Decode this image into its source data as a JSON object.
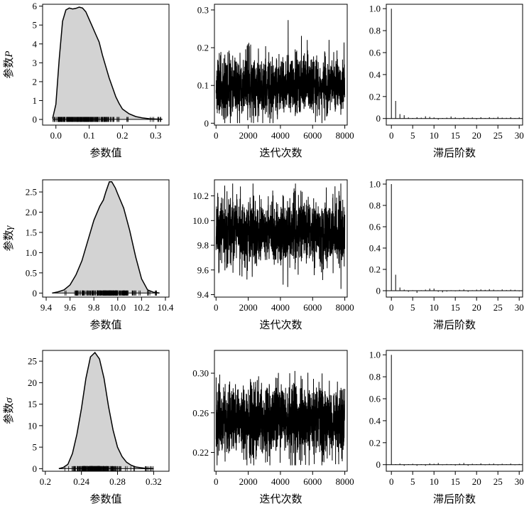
{
  "row_labels": [
    {
      "prefix": "参数",
      "symbol": "P"
    },
    {
      "prefix": "参数",
      "symbol": "γ"
    },
    {
      "prefix": "参数",
      "symbol": "σ"
    }
  ],
  "xlabels": {
    "density": "参数值",
    "trace": "迭代次数",
    "acf": "滞后阶数"
  },
  "colors": {
    "fill": "#d3d3d3",
    "line": "#000000",
    "frame": "#000000"
  },
  "chart_data": [
    {
      "id": "dens_P",
      "type": "area",
      "xlabel": "参数值",
      "xlim": [
        -0.04,
        0.34
      ],
      "ylim": [
        -0.3,
        6.1
      ],
      "xticks": [
        0.0,
        0.1,
        0.2,
        0.3
      ],
      "xtick_labels": [
        "0.0",
        "0.1",
        "0.2",
        "0.3"
      ],
      "yticks": [
        0,
        1,
        2,
        3,
        4,
        5,
        6
      ],
      "ytick_labels": [
        "0",
        "1",
        "2",
        "3",
        "4",
        "5",
        "6"
      ],
      "x": [
        -0.01,
        0.0,
        0.01,
        0.02,
        0.03,
        0.04,
        0.05,
        0.06,
        0.07,
        0.08,
        0.09,
        0.1,
        0.11,
        0.12,
        0.13,
        0.14,
        0.15,
        0.16,
        0.17,
        0.18,
        0.19,
        0.2,
        0.22,
        0.24,
        0.26,
        0.28,
        0.3,
        0.32
      ],
      "y": [
        0.05,
        0.8,
        3.2,
        5.2,
        5.8,
        5.9,
        5.85,
        5.88,
        5.95,
        5.9,
        5.7,
        5.3,
        4.9,
        4.5,
        4.1,
        3.4,
        2.8,
        2.2,
        1.7,
        1.2,
        0.85,
        0.55,
        0.3,
        0.15,
        0.08,
        0.04,
        0.02,
        0.01
      ]
    },
    {
      "id": "trace_P",
      "type": "line",
      "xlabel": "迭代次数",
      "xlim": [
        -100,
        8150
      ],
      "ylim": [
        -0.005,
        0.315
      ],
      "xticks": [
        0,
        2000,
        4000,
        6000,
        8000
      ],
      "xtick_labels": [
        "0",
        "2000",
        "4000",
        "6000",
        "8000"
      ],
      "yticks": [
        0.0,
        0.1,
        0.2,
        0.3
      ],
      "ytick_labels": [
        "0",
        "0.1",
        "0.2",
        "0.3"
      ],
      "n": 8000,
      "center": 0.098,
      "spread": 0.038,
      "lo": 0.0,
      "hi": 0.31,
      "seed": 11
    },
    {
      "id": "acf_P",
      "type": "bar",
      "xlabel": "滞后阶数",
      "xlim": [
        -1.2,
        30.8
      ],
      "ylim": [
        -0.06,
        1.04
      ],
      "xticks": [
        0,
        5,
        10,
        15,
        20,
        25,
        30
      ],
      "xtick_labels": [
        "0",
        "5",
        "10",
        "15",
        "20",
        "25",
        "30"
      ],
      "yticks": [
        0,
        0.2,
        0.4,
        0.6,
        0.8,
        1.0
      ],
      "ytick_labels": [
        "0",
        "0.2",
        "0.4",
        "0.6",
        "0.8",
        "1.0"
      ],
      "lags": [
        0,
        1,
        2,
        3,
        4,
        5,
        6,
        7,
        8,
        9,
        10,
        11,
        12,
        13,
        14,
        15,
        16,
        17,
        18,
        19,
        20,
        21,
        22,
        23,
        24,
        25,
        26,
        27,
        28,
        29,
        30
      ],
      "values": [
        1.0,
        0.16,
        0.04,
        0.03,
        0.01,
        0.005,
        0.012,
        0.008,
        0.02,
        0.015,
        0.01,
        -0.01,
        0.005,
        0.008,
        0.018,
        0.01,
        -0.005,
        0.012,
        0.006,
        0.01,
        -0.008,
        0.012,
        0.004,
        0.012,
        0.006,
        0.015,
        0.008,
        0.006,
        0.012,
        0.004,
        0.01
      ]
    },
    {
      "id": "dens_g",
      "type": "area",
      "xlabel": "参数值",
      "xlim": [
        9.37,
        10.43
      ],
      "ylim": [
        -0.1,
        2.8
      ],
      "xticks": [
        9.4,
        9.6,
        9.8,
        10.0,
        10.2,
        10.4
      ],
      "xtick_labels": [
        "9.4",
        "9.6",
        "9.8",
        "10.0",
        "10.2",
        "10.4"
      ],
      "yticks": [
        0,
        0.5,
        1.0,
        1.5,
        2.0,
        2.5
      ],
      "ytick_labels": [
        "0",
        "0.5",
        "1.0",
        "1.5",
        "2.0",
        "2.5"
      ],
      "x": [
        9.45,
        9.5,
        9.55,
        9.6,
        9.65,
        9.7,
        9.75,
        9.8,
        9.85,
        9.88,
        9.9,
        9.93,
        9.95,
        9.98,
        10.0,
        10.05,
        10.1,
        10.15,
        10.2,
        10.25,
        10.3,
        10.35
      ],
      "y": [
        0.0,
        0.03,
        0.08,
        0.2,
        0.45,
        0.8,
        1.3,
        1.8,
        2.15,
        2.3,
        2.5,
        2.75,
        2.75,
        2.6,
        2.45,
        2.1,
        1.55,
        0.9,
        0.35,
        0.08,
        0.02,
        0.0
      ]
    },
    {
      "id": "trace_g",
      "type": "line",
      "xlabel": "迭代次数",
      "xlim": [
        -100,
        8150
      ],
      "ylim": [
        9.38,
        10.33
      ],
      "xticks": [
        0,
        2000,
        4000,
        6000,
        8000
      ],
      "xtick_labels": [
        "0",
        "2000",
        "4000",
        "6000",
        "8000"
      ],
      "yticks": [
        9.4,
        9.6,
        9.8,
        10.0,
        10.2
      ],
      "ytick_labels": [
        "9.4",
        "9.6",
        "9.8",
        "10.0",
        "10.2"
      ],
      "n": 8000,
      "center": 9.905,
      "spread": 0.13,
      "lo": 9.42,
      "hi": 10.3,
      "seed": 23
    },
    {
      "id": "acf_g",
      "type": "bar",
      "xlabel": "滞后阶数",
      "xlim": [
        -1.2,
        30.8
      ],
      "ylim": [
        -0.06,
        1.04
      ],
      "xticks": [
        0,
        5,
        10,
        15,
        20,
        25,
        30
      ],
      "xtick_labels": [
        "0",
        "5",
        "10",
        "15",
        "20",
        "25",
        "30"
      ],
      "yticks": [
        0,
        0.2,
        0.4,
        0.6,
        0.8,
        1.0
      ],
      "ytick_labels": [
        "0",
        "0.2",
        "0.4",
        "0.6",
        "0.8",
        "1.0"
      ],
      "lags": [
        0,
        1,
        2,
        3,
        4,
        5,
        6,
        7,
        8,
        9,
        10,
        11,
        12,
        13,
        14,
        15,
        16,
        17,
        18,
        19,
        20,
        21,
        22,
        23,
        24,
        25,
        26,
        27,
        28,
        29,
        30
      ],
      "values": [
        1.0,
        0.15,
        0.03,
        0.01,
        -0.01,
        0.005,
        -0.02,
        0.005,
        0.01,
        0.02,
        0.02,
        -0.01,
        -0.015,
        -0.008,
        0.005,
        -0.005,
        0.008,
        0.012,
        -0.01,
        0.005,
        0.01,
        0.012,
        0.008,
        0.015,
        0.01,
        0.005,
        0.012,
        0.006,
        0.01,
        0.008,
        -0.005
      ]
    },
    {
      "id": "dens_s",
      "type": "area",
      "xlabel": "参数值",
      "xlim": [
        0.197,
        0.337
      ],
      "ylim": [
        -0.6,
        27.5
      ],
      "xticks": [
        0.2,
        0.24,
        0.28,
        0.32
      ],
      "xtick_labels": [
        "0.2",
        "0.24",
        "0.28",
        "0.32"
      ],
      "yticks": [
        0,
        5,
        10,
        15,
        20,
        25
      ],
      "ytick_labels": [
        "0",
        "5",
        "10",
        "15",
        "20",
        "25"
      ],
      "x": [
        0.215,
        0.22,
        0.225,
        0.23,
        0.235,
        0.24,
        0.245,
        0.25,
        0.255,
        0.26,
        0.265,
        0.27,
        0.275,
        0.28,
        0.285,
        0.29,
        0.295,
        0.3,
        0.31,
        0.32
      ],
      "y": [
        0.0,
        0.3,
        1.0,
        3.5,
        8.0,
        14.0,
        21.0,
        26.0,
        27.0,
        25.5,
        21.0,
        14.5,
        9.0,
        5.0,
        2.8,
        1.5,
        0.8,
        0.4,
        0.1,
        0.0
      ]
    },
    {
      "id": "trace_s",
      "type": "line",
      "xlabel": "迭代次数",
      "xlim": [
        -100,
        8150
      ],
      "ylim": [
        0.201,
        0.323
      ],
      "xticks": [
        0,
        2000,
        4000,
        6000,
        8000
      ],
      "xtick_labels": [
        "0",
        "2000",
        "4000",
        "6000",
        "8000"
      ],
      "yticks": [
        0.22,
        0.26,
        0.3
      ],
      "ytick_labels": [
        "0.22",
        "0.26",
        "0.30"
      ],
      "n": 8000,
      "center": 0.2525,
      "spread": 0.0175,
      "lo": 0.207,
      "hi": 0.32,
      "seed": 37
    },
    {
      "id": "acf_s",
      "type": "bar",
      "xlabel": "滞后阶数",
      "xlim": [
        -1.2,
        30.8
      ],
      "ylim": [
        -0.06,
        1.04
      ],
      "xticks": [
        0,
        5,
        10,
        15,
        20,
        25,
        30
      ],
      "xtick_labels": [
        "0",
        "5",
        "10",
        "15",
        "20",
        "25",
        "30"
      ],
      "yticks": [
        0,
        0.2,
        0.4,
        0.6,
        0.8,
        1.0
      ],
      "ytick_labels": [
        "0",
        "0.2",
        "0.4",
        "0.6",
        "0.8",
        "1.0"
      ],
      "lags": [
        0,
        1,
        2,
        3,
        4,
        5,
        6,
        7,
        8,
        9,
        10,
        11,
        12,
        13,
        14,
        15,
        16,
        17,
        18,
        19,
        20,
        21,
        22,
        23,
        24,
        25,
        26,
        27,
        28,
        29,
        30
      ],
      "values": [
        1.0,
        0.005,
        0.01,
        -0.01,
        0.005,
        0.008,
        -0.01,
        0.005,
        -0.01,
        0.012,
        0.008,
        0.015,
        -0.005,
        0.006,
        0.005,
        -0.008,
        0.01,
        0.015,
        -0.01,
        0.008,
        0.005,
        0.012,
        -0.005,
        0.008,
        0.01,
        -0.006,
        0.008,
        0.004,
        0.01,
        -0.005,
        0.006
      ]
    }
  ]
}
